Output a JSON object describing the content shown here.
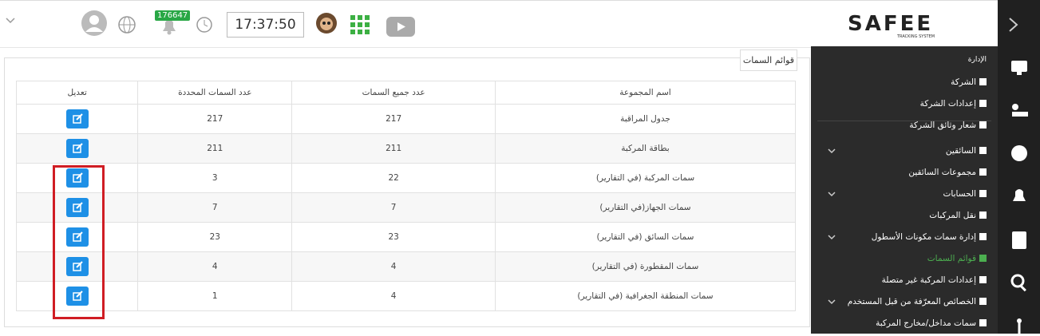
{
  "header": {
    "notification_count": "176647",
    "time": "17:37:50",
    "logo": "SAFEE",
    "logo_subtitle": "TRACKING SYSTEM"
  },
  "panel": {
    "title": "قوائم السمات"
  },
  "table": {
    "columns": [
      "تعديل",
      "عدد السمات المحددة",
      "عدد جميع السمات",
      "اسم المجموعة"
    ],
    "rows": [
      [
        217,
        217,
        "جدول المراقبة"
      ],
      [
        211,
        211,
        "بطاقة المركبة"
      ],
      [
        3,
        22,
        "سمات المركبة (في التقارير)"
      ],
      [
        7,
        7,
        "سمات الجهاز(في التقارير)"
      ],
      [
        23,
        23,
        "سمات السائق (في التقارير)"
      ],
      [
        4,
        4,
        "سمات المقطورة (في التقارير)"
      ],
      [
        1,
        4,
        "سمات المنطقة الجغرافية (في التقارير)"
      ]
    ]
  },
  "sidebar": {
    "section": "الإدارة",
    "items": [
      {
        "label": "الشركة"
      },
      {
        "label": "إعدادات الشركة"
      },
      {
        "label": "شعار وثائق الشركة"
      },
      {
        "label": "السائقين",
        "expandable": true
      },
      {
        "label": "مجموعات السائقين"
      },
      {
        "label": "الحسابات",
        "expandable": true
      },
      {
        "label": "نقل المركبات"
      },
      {
        "label": "إدارة سمات مكونات الأسطول",
        "expandable": true
      },
      {
        "label": "قوائم السمات",
        "active": true
      },
      {
        "label": "إعدادات المركبة غير متصلة"
      },
      {
        "label": "الخصائص المعرّفة من قبل المستخدم",
        "expandable": true
      },
      {
        "label": "سمات مداخل/مخارج المركبة"
      }
    ]
  }
}
